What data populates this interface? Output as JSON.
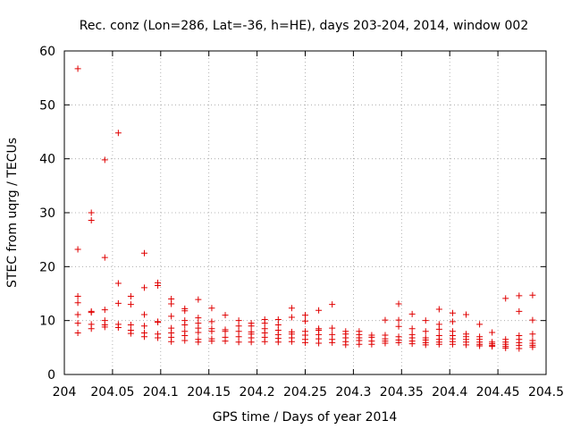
{
  "chart_data": {
    "type": "scatter",
    "title": "Rec. conz (Lon=286, Lat=-36, h=HE), days 203-204, 2014, window 002",
    "xlabel": "GPS time / Days of year 2014",
    "ylabel": "STEC from uqrg / TECUs",
    "xlim": [
      204,
      204.5
    ],
    "ylim": [
      0,
      60
    ],
    "xticks": [
      204,
      204.05,
      204.1,
      204.15,
      204.2,
      204.25,
      204.3,
      204.35,
      204.4,
      204.45,
      204.5
    ],
    "xtick_labels": [
      "204",
      "204.05",
      "204.1",
      "204.15",
      "204.2",
      "204.25",
      "204.3",
      "204.35",
      "204.4",
      "204.45",
      "204.5"
    ],
    "yticks": [
      0,
      10,
      20,
      30,
      40,
      50,
      60
    ],
    "ytick_labels": [
      "0",
      "10",
      "20",
      "30",
      "40",
      "50",
      "60"
    ],
    "grid": true,
    "marker": "+",
    "color": "#e00000",
    "groups": [
      {
        "x": 204.014,
        "y": [
          56.7,
          23.2,
          14.5,
          13.3,
          11.1,
          9.5,
          7.7
        ]
      },
      {
        "x": 204.028,
        "y": [
          30.0,
          28.6,
          11.7,
          11.5,
          9.3,
          8.5
        ]
      },
      {
        "x": 204.042,
        "y": [
          39.8,
          21.7,
          12.0,
          10.0,
          9.2,
          8.8
        ]
      },
      {
        "x": 204.056,
        "y": [
          44.8,
          16.9,
          13.2,
          9.3,
          8.7
        ]
      },
      {
        "x": 204.069,
        "y": [
          14.5,
          13.0,
          9.2,
          8.2,
          7.6
        ]
      },
      {
        "x": 204.083,
        "y": [
          22.5,
          16.1,
          11.1,
          9.0,
          7.7,
          7.0
        ]
      },
      {
        "x": 204.097,
        "y": [
          17.0,
          16.5,
          9.8,
          9.7,
          7.5,
          6.8
        ]
      },
      {
        "x": 204.111,
        "y": [
          14.0,
          13.1,
          10.8,
          8.6,
          7.7,
          6.9,
          6.1
        ]
      },
      {
        "x": 204.125,
        "y": [
          12.2,
          11.8,
          10.0,
          9.2,
          8.0,
          7.2,
          6.3
        ]
      },
      {
        "x": 204.139,
        "y": [
          13.9,
          10.5,
          9.5,
          8.6,
          7.8,
          6.5,
          6.0
        ]
      },
      {
        "x": 204.153,
        "y": [
          12.3,
          9.8,
          8.5,
          8.0,
          6.6,
          6.2
        ]
      },
      {
        "x": 204.167,
        "y": [
          11.0,
          8.3,
          8.0,
          6.9,
          6.2
        ]
      },
      {
        "x": 204.181,
        "y": [
          10.0,
          9.0,
          8.0,
          7.0,
          6.0
        ]
      },
      {
        "x": 204.194,
        "y": [
          9.5,
          9.0,
          7.9,
          7.5,
          6.8,
          6.0
        ]
      },
      {
        "x": 204.208,
        "y": [
          10.2,
          9.5,
          8.5,
          7.7,
          6.9,
          6.1
        ]
      },
      {
        "x": 204.222,
        "y": [
          10.2,
          9.2,
          8.2,
          7.4,
          6.7,
          6.0
        ]
      },
      {
        "x": 204.236,
        "y": [
          12.3,
          10.6,
          7.9,
          7.5,
          6.8,
          6.1
        ]
      },
      {
        "x": 204.25,
        "y": [
          11.0,
          9.9,
          8.0,
          7.3,
          6.5,
          5.9
        ]
      },
      {
        "x": 204.264,
        "y": [
          11.9,
          8.5,
          8.2,
          7.4,
          6.6,
          5.8
        ]
      },
      {
        "x": 204.278,
        "y": [
          13.0,
          8.6,
          7.4,
          6.5,
          5.9
        ]
      },
      {
        "x": 204.292,
        "y": [
          8.0,
          7.5,
          6.8,
          6.1,
          5.5
        ]
      },
      {
        "x": 204.306,
        "y": [
          8.0,
          7.4,
          6.8,
          6.3,
          5.6
        ]
      },
      {
        "x": 204.319,
        "y": [
          7.3,
          6.9,
          6.2,
          5.6
        ]
      },
      {
        "x": 204.333,
        "y": [
          10.1,
          7.3,
          6.6,
          6.2,
          5.8
        ]
      },
      {
        "x": 204.347,
        "y": [
          13.1,
          10.1,
          8.9,
          7.0,
          6.4,
          5.9
        ]
      },
      {
        "x": 204.361,
        "y": [
          11.2,
          8.5,
          7.4,
          6.8,
          6.2,
          5.7
        ]
      },
      {
        "x": 204.375,
        "y": [
          10.0,
          8.0,
          6.8,
          6.4,
          5.9,
          5.5
        ]
      },
      {
        "x": 204.389,
        "y": [
          12.1,
          9.3,
          8.4,
          7.2,
          6.5,
          6.0,
          5.6
        ]
      },
      {
        "x": 204.403,
        "y": [
          11.4,
          9.8,
          8.0,
          7.2,
          6.6,
          6.1,
          5.6
        ]
      },
      {
        "x": 204.417,
        "y": [
          11.1,
          7.5,
          7.0,
          6.5,
          6.0,
          5.5
        ]
      },
      {
        "x": 204.431,
        "y": [
          9.3,
          7.0,
          6.5,
          6.0,
          5.6,
          5.3
        ]
      },
      {
        "x": 204.444,
        "y": [
          7.8,
          6.0,
          5.7,
          5.4,
          5.2
        ]
      },
      {
        "x": 204.458,
        "y": [
          14.1,
          6.5,
          6.0,
          5.6,
          5.2,
          4.9
        ]
      },
      {
        "x": 204.472,
        "y": [
          14.6,
          11.7,
          7.2,
          6.5,
          5.9,
          5.4,
          4.8
        ]
      },
      {
        "x": 204.486,
        "y": [
          14.7,
          10.1,
          7.5,
          6.3,
          5.8,
          5.4,
          5.1
        ]
      }
    ]
  }
}
